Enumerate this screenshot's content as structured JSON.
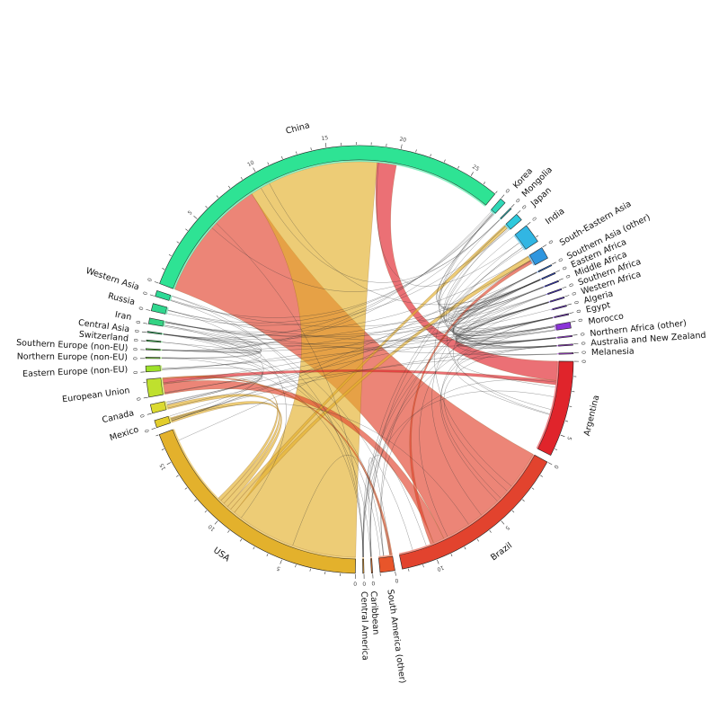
{
  "chart_data": {
    "type": "chord",
    "title": "",
    "tick_step": 1,
    "label_step": 5,
    "segments": [
      {
        "name": "Argentina",
        "total": 6.5,
        "color": "#e0242b",
        "labeled_ticks": [
          [
            "0",
            0
          ],
          [
            "5",
            5
          ]
        ]
      },
      {
        "name": "Brazil",
        "total": 12.4,
        "color": "#e2432e",
        "labeled_ticks": [
          [
            "0",
            0
          ],
          [
            "5",
            5
          ],
          [
            "10",
            10
          ]
        ]
      },
      {
        "name": "South America (other)",
        "total": 1.0,
        "color": "#e8552a",
        "labeled_ticks": [
          [
            "0",
            0
          ]
        ]
      },
      {
        "name": "Caribbean",
        "total": 0.08,
        "color": "#ec7a2d",
        "labeled_ticks": [
          [
            "0",
            0
          ]
        ]
      },
      {
        "name": "Central America",
        "total": 0.08,
        "color": "#eba234",
        "labeled_ticks": [
          [
            "0",
            0
          ]
        ]
      },
      {
        "name": "USA",
        "total": 17.0,
        "color": "#e3b12c",
        "labeled_ticks": [
          [
            "0",
            0
          ],
          [
            "5",
            5
          ],
          [
            "10",
            10
          ],
          [
            "15",
            15
          ]
        ]
      },
      {
        "name": "Mexico",
        "total": 0.5,
        "color": "#e2cd2c",
        "labeled_ticks": [
          [
            "0",
            0
          ]
        ]
      },
      {
        "name": "Canada",
        "total": 0.6,
        "color": "#dbda30",
        "labeled_ticks": [
          [
            "0",
            0
          ]
        ]
      },
      {
        "name": "European Union",
        "total": 1.2,
        "color": "#bfe02e",
        "labeled_ticks": [
          [
            "0",
            0
          ]
        ]
      },
      {
        "name": "Eastern Europe (non-EU)",
        "total": 0.4,
        "color": "#9ee12a",
        "labeled_ticks": [
          [
            "0",
            0
          ]
        ]
      },
      {
        "name": "Northern Europe (non-EU)",
        "total": 0.08,
        "color": "#74da2c",
        "labeled_ticks": [
          [
            "0",
            0
          ]
        ]
      },
      {
        "name": "Southern Europe (non-EU)",
        "total": 0.08,
        "color": "#56d33a",
        "labeled_ticks": [
          [
            "0",
            0
          ]
        ]
      },
      {
        "name": "Switzerland",
        "total": 0.08,
        "color": "#46d05a",
        "labeled_ticks": [
          [
            "0",
            0
          ]
        ]
      },
      {
        "name": "Central Asia",
        "total": 0.08,
        "color": "#3ccf74",
        "labeled_ticks": [
          [
            "0",
            0
          ]
        ]
      },
      {
        "name": "Iran",
        "total": 0.4,
        "color": "#33d383",
        "labeled_ticks": [
          [
            "0",
            0
          ]
        ]
      },
      {
        "name": "Russia",
        "total": 0.5,
        "color": "#30d78f",
        "labeled_ticks": [
          [
            "0",
            0
          ]
        ]
      },
      {
        "name": "Western Asia",
        "total": 0.4,
        "color": "#2dda96",
        "labeled_ticks": [
          [
            "0",
            0
          ]
        ]
      },
      {
        "name": "China",
        "total": 27.0,
        "color": "#2ee394",
        "labeled_ticks": [
          [
            "0",
            0
          ],
          [
            "5",
            5
          ],
          [
            "10",
            10
          ],
          [
            "15",
            15
          ],
          [
            "20",
            20
          ],
          [
            "25",
            25
          ]
        ]
      },
      {
        "name": "Korea",
        "total": 0.4,
        "color": "#2fd8b7",
        "labeled_ticks": [
          [
            "0",
            0
          ]
        ]
      },
      {
        "name": "Mongolia",
        "total": 0.08,
        "color": "#2fcfd0",
        "labeled_ticks": [
          [
            "0",
            0
          ]
        ]
      },
      {
        "name": "Japan",
        "total": 0.5,
        "color": "#2ec9dc",
        "labeled_ticks": [
          [
            "0",
            0
          ]
        ]
      },
      {
        "name": "India",
        "total": 1.3,
        "color": "#31b6e3",
        "labeled_ticks": [
          [
            "0",
            0
          ]
        ]
      },
      {
        "name": "South-Eastern Asia",
        "total": 0.8,
        "color": "#2f96df",
        "labeled_ticks": [
          [
            "0",
            0
          ]
        ]
      },
      {
        "name": "Southern Asia (other)",
        "total": 0.08,
        "color": "#2c6fdb",
        "labeled_ticks": [
          [
            "0",
            0
          ]
        ]
      },
      {
        "name": "Eastern Africa",
        "total": 0.08,
        "color": "#2a47d5",
        "labeled_ticks": [
          [
            "0",
            0
          ]
        ]
      },
      {
        "name": "Middle Africa",
        "total": 0.08,
        "color": "#3031cf",
        "labeled_ticks": [
          [
            "0",
            0
          ]
        ]
      },
      {
        "name": "Southern Africa",
        "total": 0.08,
        "color": "#4a2dcc",
        "labeled_ticks": [
          [
            "0",
            0
          ]
        ]
      },
      {
        "name": "Western Africa",
        "total": 0.08,
        "color": "#5a2dcb",
        "labeled_ticks": [
          [
            "0",
            0
          ]
        ]
      },
      {
        "name": "Algeria",
        "total": 0.08,
        "color": "#6a2dcc",
        "labeled_ticks": [
          [
            "0",
            0
          ]
        ]
      },
      {
        "name": "Egypt",
        "total": 0.08,
        "color": "#7a2ecf",
        "labeled_ticks": [
          [
            "0",
            0
          ]
        ]
      },
      {
        "name": "Morocco",
        "total": 0.4,
        "color": "#8b33d8",
        "labeled_ticks": [
          [
            "0",
            0
          ]
        ]
      },
      {
        "name": "Northern Africa (other)",
        "total": 0.08,
        "color": "#9b37dc",
        "labeled_ticks": [
          [
            "0",
            0
          ]
        ]
      },
      {
        "name": "Australia and New Zealand",
        "total": 0.08,
        "color": "#a43cde",
        "labeled_ticks": [
          [
            "0",
            0
          ]
        ]
      },
      {
        "name": "Melanesia",
        "total": 0.08,
        "color": "#b040e0",
        "labeled_ticks": [
          [
            "0",
            0
          ]
        ]
      }
    ],
    "major_flows": [
      {
        "source": "Brazil",
        "target": "China",
        "value": 9.0,
        "color": "#e2432e"
      },
      {
        "source": "USA",
        "target": "China",
        "value": 9.5,
        "color": "#e3b12c"
      },
      {
        "source": "Argentina",
        "target": "China",
        "value": 1.4,
        "color": "#e0242b"
      },
      {
        "source": "Brazil",
        "target": "European Union",
        "value": 0.8,
        "color": "#e2432e"
      },
      {
        "source": "USA",
        "target": "South-Eastern Asia",
        "value": 0.35,
        "color": "#e3b12c"
      },
      {
        "source": "USA",
        "target": "Japan",
        "value": 0.3,
        "color": "#e3b12c"
      },
      {
        "source": "USA",
        "target": "Mexico",
        "value": 0.35,
        "color": "#e3b12c"
      },
      {
        "source": "USA",
        "target": "Canada",
        "value": 0.3,
        "color": "#e3b12c"
      },
      {
        "source": "Brazil",
        "target": "South-Eastern Asia",
        "value": 0.25,
        "color": "#e2432e"
      },
      {
        "source": "Argentina",
        "target": "European Union",
        "value": 0.3,
        "color": "#e0242b"
      },
      {
        "source": "South America (other)",
        "target": "European Union",
        "value": 0.2,
        "color": "#e8552a"
      },
      {
        "source": "USA",
        "target": "European Union",
        "value": 0.25,
        "color": "#e3b12c"
      }
    ],
    "minor_flows_note_count": 110
  }
}
